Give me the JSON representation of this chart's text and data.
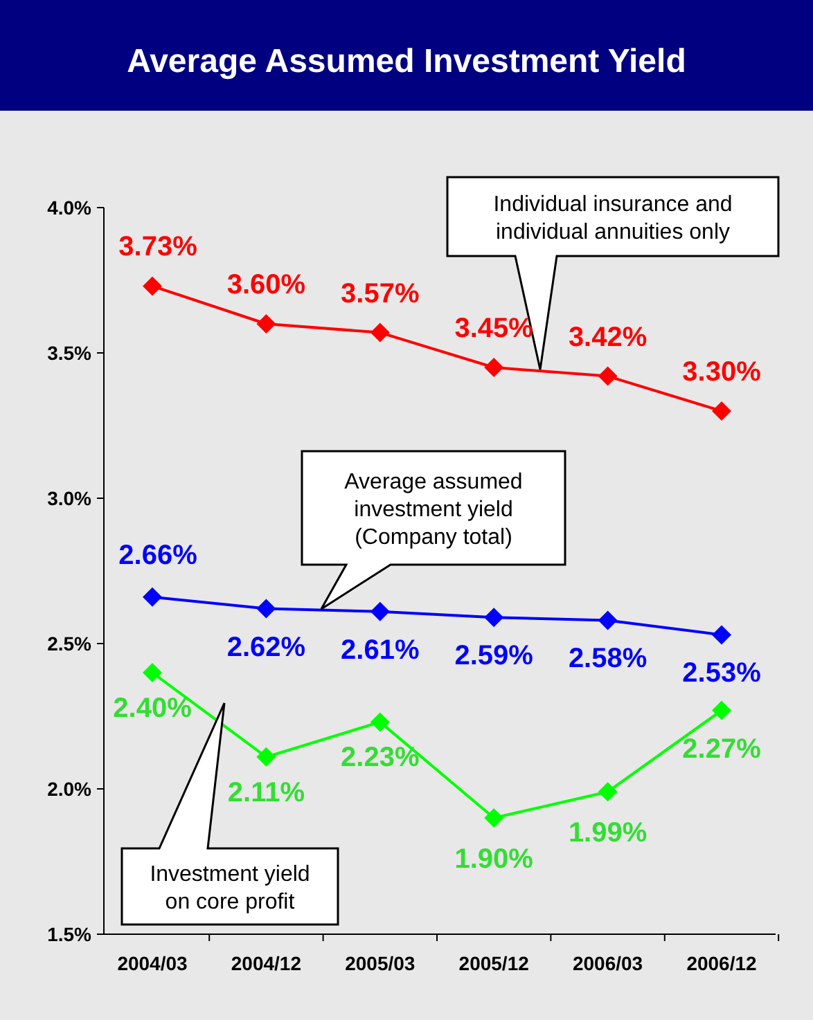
{
  "chart_data": {
    "type": "line",
    "title": "Average Assumed Investment Yield",
    "categories": [
      "2004/03",
      "2004/12",
      "2005/03",
      "2005/12",
      "2006/03",
      "2006/12"
    ],
    "series": [
      {
        "color": "#ff0000",
        "values": [
          3.73,
          3.6,
          3.57,
          3.45,
          3.42,
          3.3
        ],
        "value_labels": [
          "3.73%",
          "3.60%",
          "3.57%",
          "3.45%",
          "3.42%",
          "3.30%"
        ]
      },
      {
        "color": "#0000ff",
        "values": [
          2.66,
          2.62,
          2.61,
          2.59,
          2.58,
          2.53
        ],
        "value_labels": [
          "2.66%",
          "2.62%",
          "2.61%",
          "2.59%",
          "2.58%",
          "2.53%"
        ]
      },
      {
        "color": "#00ff00",
        "values": [
          2.4,
          2.11,
          2.23,
          1.9,
          1.99,
          2.27
        ],
        "value_labels": [
          "2.40%",
          "2.11%",
          "2.23%",
          "1.90%",
          "1.99%",
          "2.27%"
        ]
      }
    ],
    "ylim": [
      1.5,
      4.0
    ],
    "yticks": [
      {
        "value": 1.5,
        "label": "1.5%"
      },
      {
        "value": 2.0,
        "label": "2.0%"
      },
      {
        "value": 2.5,
        "label": "2.5%"
      },
      {
        "value": 3.0,
        "label": "3.0%"
      },
      {
        "value": 3.5,
        "label": "3.5%"
      },
      {
        "value": 4.0,
        "label": "4.0%"
      }
    ],
    "marker": "diamond",
    "grid": false,
    "annotations": [
      "Individual insurance and individual annuities only",
      "Average assumed investment yield (Company total)",
      "Investment yield on core profit"
    ]
  }
}
